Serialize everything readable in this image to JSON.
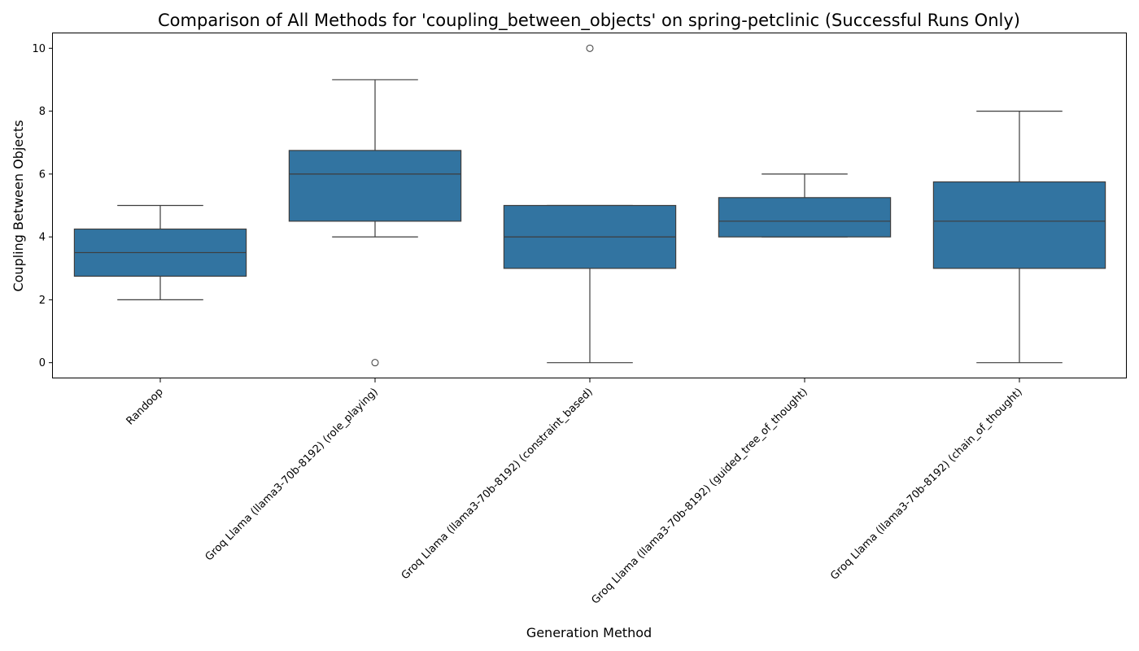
{
  "chart_data": {
    "type": "box",
    "title": "Comparison of All Methods for 'coupling_between_objects' on spring-petclinic (Successful Runs Only)",
    "xlabel": "Generation Method",
    "ylabel": "Coupling Between Objects",
    "ylim": [
      -0.5,
      10.5
    ],
    "yticks": [
      0,
      2,
      4,
      6,
      8,
      10
    ],
    "grid": false,
    "box_color": "#3274a1",
    "line_color": "#3d3d3d",
    "categories": [
      "Randoop",
      "Groq Llama (llama3-70b-8192) (role_playing)",
      "Groq Llama (llama3-70b-8192) (constraint_based)",
      "Groq Llama (llama3-70b-8192) (guided_tree_of_thought)",
      "Groq Llama (llama3-70b-8192) (chain_of_thought)"
    ],
    "boxes": [
      {
        "whisker_low": 2,
        "q1": 2.75,
        "median": 3.5,
        "q3": 4.25,
        "whisker_high": 5,
        "outliers": []
      },
      {
        "whisker_low": 4,
        "q1": 4.5,
        "median": 6,
        "q3": 6.75,
        "whisker_high": 9,
        "outliers": [
          0
        ]
      },
      {
        "whisker_low": 0,
        "q1": 3,
        "median": 4,
        "q3": 5,
        "whisker_high": 5,
        "outliers": [
          10
        ]
      },
      {
        "whisker_low": 4,
        "q1": 4,
        "median": 4.5,
        "q3": 5.25,
        "whisker_high": 6,
        "outliers": []
      },
      {
        "whisker_low": 0,
        "q1": 3,
        "median": 4.5,
        "q3": 5.75,
        "whisker_high": 8,
        "outliers": []
      }
    ]
  }
}
